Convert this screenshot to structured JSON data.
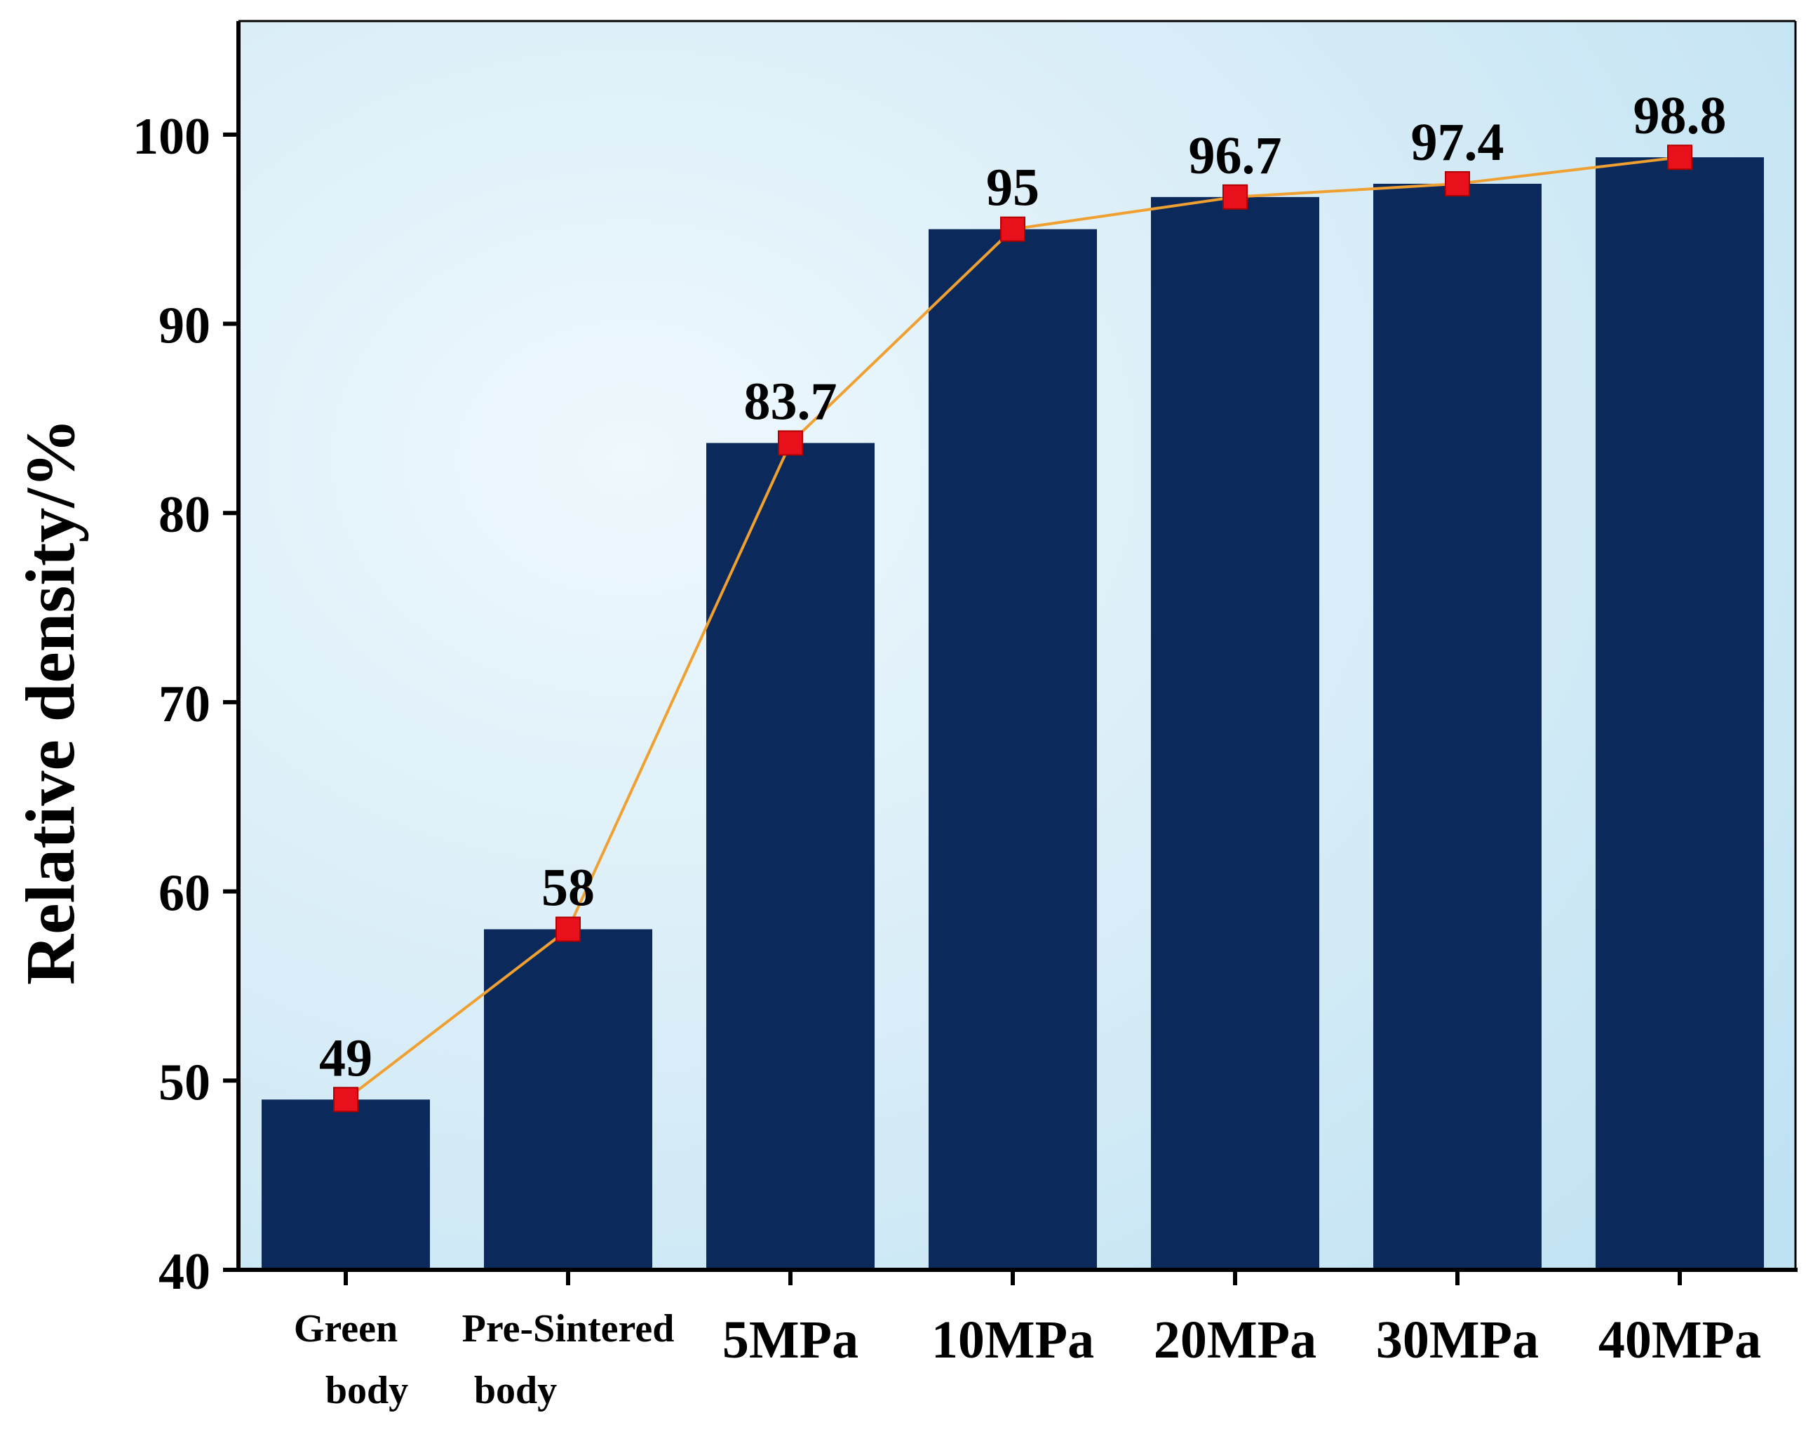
{
  "chart_data": {
    "type": "bar",
    "categories": [
      [
        "Green",
        "body"
      ],
      [
        "Pre-Sintered",
        "body"
      ],
      [
        "5MPa"
      ],
      [
        "10MPa"
      ],
      [
        "20MPa"
      ],
      [
        "30MPa"
      ],
      [
        "40MPa"
      ]
    ],
    "values": [
      49,
      58,
      83.7,
      95,
      96.7,
      97.4,
      98.8
    ],
    "data_labels": [
      "49",
      "58",
      "83.7",
      "95",
      "96.7",
      "97.4",
      "98.8"
    ],
    "title": "",
    "xlabel": "",
    "ylabel": "Relative density/%",
    "ylim": [
      40,
      106
    ],
    "yticks": [
      40,
      50,
      60,
      70,
      80,
      90,
      100
    ],
    "series_overlay": {
      "type": "line",
      "marker": "square",
      "values": [
        49,
        58,
        83.7,
        95,
        96.7,
        97.4,
        98.8
      ]
    },
    "colors": {
      "bar": "#0b2a5b",
      "line": "#f0a030",
      "marker": "#e8101a",
      "marker_edge": "#b00000",
      "background_top": "#d6ecf7",
      "background_bottom": "#bfe2f3",
      "background_glow": "#eef8fd"
    },
    "grid": false,
    "legend": "none"
  }
}
